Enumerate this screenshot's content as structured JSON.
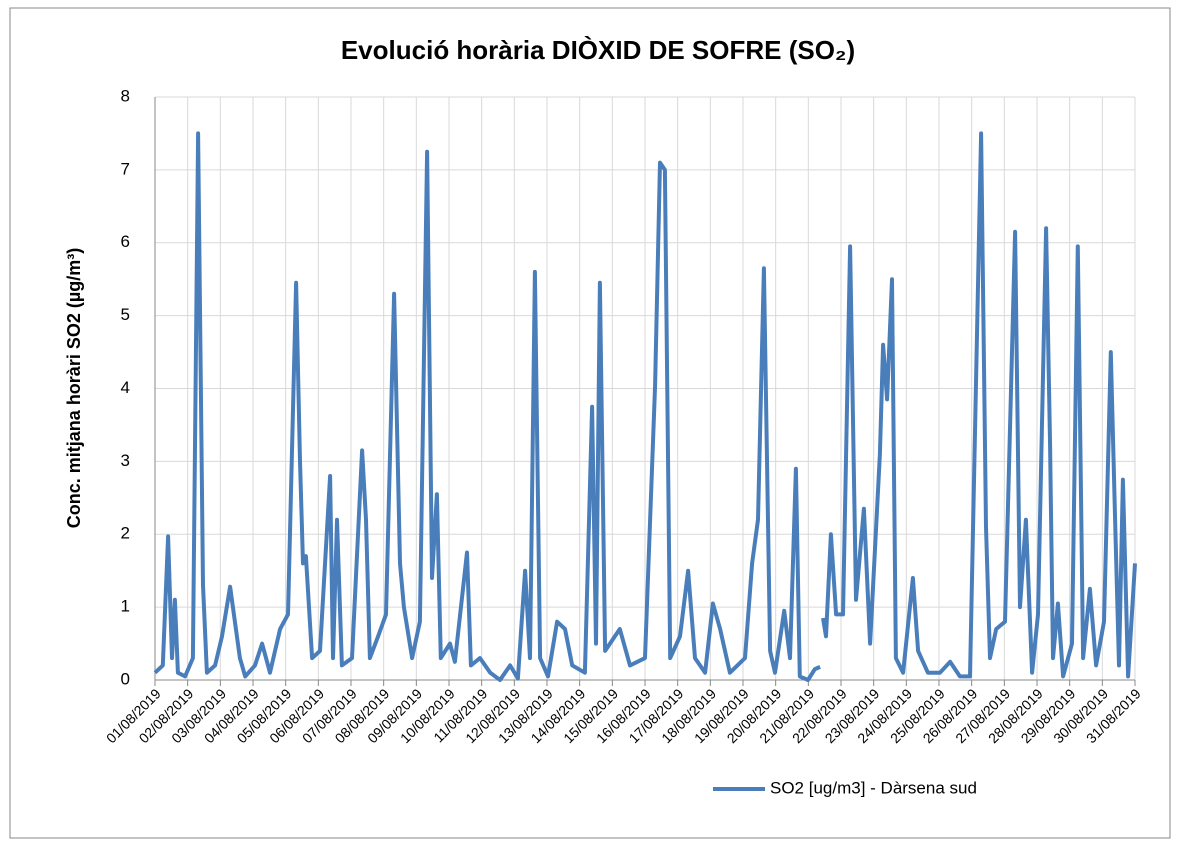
{
  "chart_data": {
    "type": "line",
    "title": "Evolució horària DIÒXID DE SOFRE (SO₂)",
    "y_label": "Conc. mitjana horàri SO2 (µg/m³)",
    "x": [
      0,
      0.24,
      0.4,
      0.52,
      0.61,
      0.7,
      0.92,
      1.16,
      1.32,
      1.47,
      1.59,
      1.84,
      2.05,
      2.3,
      2.6,
      2.76,
      3.06,
      3.28,
      3.52,
      3.83,
      4.07,
      4.32,
      4.44,
      4.53,
      4.62,
      4.81,
      5.05,
      5.36,
      5.45,
      5.57,
      5.72,
      6.03,
      6.34,
      6.46,
      6.58,
      6.83,
      7.07,
      7.32,
      7.5,
      7.62,
      7.87,
      8.11,
      8.33,
      8.48,
      8.63,
      8.75,
      9.03,
      9.18,
      9.55,
      9.67,
      9.95,
      10.26,
      10.56,
      10.87,
      11.11,
      11.33,
      11.48,
      11.63,
      11.79,
      12.03,
      12.31,
      12.55,
      12.77,
      13.16,
      13.38,
      13.5,
      13.62,
      13.78,
      14.23,
      14.54,
      15.0,
      15.31,
      15.46,
      15.61,
      15.77,
      16.07,
      16.32,
      16.53,
      16.84,
      17.08,
      17.3,
      17.6,
      18.06,
      18.28,
      18.46,
      18.64,
      18.83,
      18.98,
      19.26,
      19.44,
      19.62,
      19.74,
      19.99,
      20.2,
      20.36,
      20.4,
      20.45,
      20.54,
      20.69,
      20.85,
      21.06,
      21.28,
      21.46,
      21.7,
      21.89,
      22.19,
      22.29,
      22.41,
      22.56,
      22.68,
      22.9,
      23.2,
      23.36,
      23.66,
      24.03,
      24.34,
      24.64,
      24.95,
      25.29,
      25.44,
      25.56,
      25.75,
      26.02,
      26.33,
      26.48,
      26.66,
      26.85,
      27.03,
      27.28,
      27.4,
      27.49,
      27.64,
      27.8,
      28.07,
      28.25,
      28.41,
      28.62,
      28.81,
      29.05,
      29.26,
      29.39,
      29.51,
      29.63,
      29.79,
      30
    ],
    "series": [
      {
        "name": "SO2 [ug/m3] - Dàrsena sud",
        "color": "#4a7ebb",
        "values": [
          0.1,
          0.2,
          1.97,
          0.3,
          1.1,
          0.1,
          0.05,
          0.3,
          7.5,
          1.3,
          0.1,
          0.2,
          0.6,
          1.28,
          0.3,
          0.05,
          0.2,
          0.5,
          0.1,
          0.7,
          0.9,
          5.45,
          3,
          1.6,
          1.7,
          0.3,
          0.4,
          2.8,
          0.3,
          2.2,
          0.2,
          0.3,
          3.15,
          2.2,
          0.3,
          0.6,
          0.9,
          5.3,
          1.6,
          1.0,
          0.3,
          0.8,
          7.25,
          1.4,
          2.55,
          0.3,
          0.5,
          0.25,
          1.75,
          0.2,
          0.3,
          0.1,
          0.0,
          0.2,
          0.02,
          1.5,
          0.3,
          5.6,
          0.3,
          0.05,
          0.8,
          0.7,
          0.2,
          0.1,
          3.75,
          0.5,
          5.45,
          0.4,
          0.7,
          0.2,
          0.3,
          4.05,
          7.1,
          7.0,
          0.3,
          0.6,
          1.5,
          0.3,
          0.1,
          1.05,
          0.7,
          0.1,
          0.3,
          1.6,
          2.2,
          5.65,
          0.4,
          0.1,
          0.95,
          0.3,
          2.9,
          0.05,
          0.0,
          0.15,
          0.18,
          null,
          0.85,
          0.6,
          2.0,
          0.9,
          0.9,
          5.95,
          1.1,
          2.35,
          0.5,
          3.1,
          4.6,
          3.85,
          5.5,
          0.3,
          0.1,
          1.4,
          0.4,
          0.1,
          0.1,
          0.25,
          0.05,
          0.05,
          7.5,
          2.1,
          0.3,
          0.7,
          0.8,
          6.15,
          1.0,
          2.2,
          0.1,
          0.9,
          6.2,
          3.2,
          0.3,
          1.05,
          0.05,
          0.5,
          5.95,
          0.3,
          1.25,
          0.2,
          0.8,
          4.5,
          2.2,
          0.2,
          2.75,
          0.05,
          1.6
        ]
      }
    ],
    "xlim": [
      0,
      30
    ],
    "xticks": [
      {
        "value": 0,
        "label": "01/08/2019"
      },
      {
        "value": 1,
        "label": "02/08/2019"
      },
      {
        "value": 2,
        "label": "03/08/2019"
      },
      {
        "value": 3,
        "label": "04/08/2019"
      },
      {
        "value": 4,
        "label": "05/08/2019"
      },
      {
        "value": 5,
        "label": "06/08/2019"
      },
      {
        "value": 6,
        "label": "07/08/2019"
      },
      {
        "value": 7,
        "label": "08/08/2019"
      },
      {
        "value": 8,
        "label": "09/08/2019"
      },
      {
        "value": 9,
        "label": "10/08/2019"
      },
      {
        "value": 10,
        "label": "11/08/2019"
      },
      {
        "value": 11,
        "label": "12/08/2019"
      },
      {
        "value": 12,
        "label": "13/08/2019"
      },
      {
        "value": 13,
        "label": "14/08/2019"
      },
      {
        "value": 14,
        "label": "15/08/2019"
      },
      {
        "value": 15,
        "label": "16/08/2019"
      },
      {
        "value": 16,
        "label": "17/08/2019"
      },
      {
        "value": 17,
        "label": "18/08/2019"
      },
      {
        "value": 18,
        "label": "19/08/2019"
      },
      {
        "value": 19,
        "label": "20/08/2019"
      },
      {
        "value": 20,
        "label": "21/08/2019"
      },
      {
        "value": 21,
        "label": "22/08/2019"
      },
      {
        "value": 22,
        "label": "23/08/2019"
      },
      {
        "value": 23,
        "label": "24/08/2019"
      },
      {
        "value": 24,
        "label": "25/08/2019"
      },
      {
        "value": 25,
        "label": "26/08/2019"
      },
      {
        "value": 26,
        "label": "27/08/2019"
      },
      {
        "value": 27,
        "label": "28/08/2019"
      },
      {
        "value": 28,
        "label": "29/08/2019"
      },
      {
        "value": 29,
        "label": "30/08/2019"
      },
      {
        "value": 30,
        "label": "31/08/2019"
      }
    ],
    "ylim": [
      0,
      8
    ],
    "yticks": [
      0,
      1,
      2,
      3,
      4,
      5,
      6,
      7,
      8
    ],
    "grid": true
  }
}
